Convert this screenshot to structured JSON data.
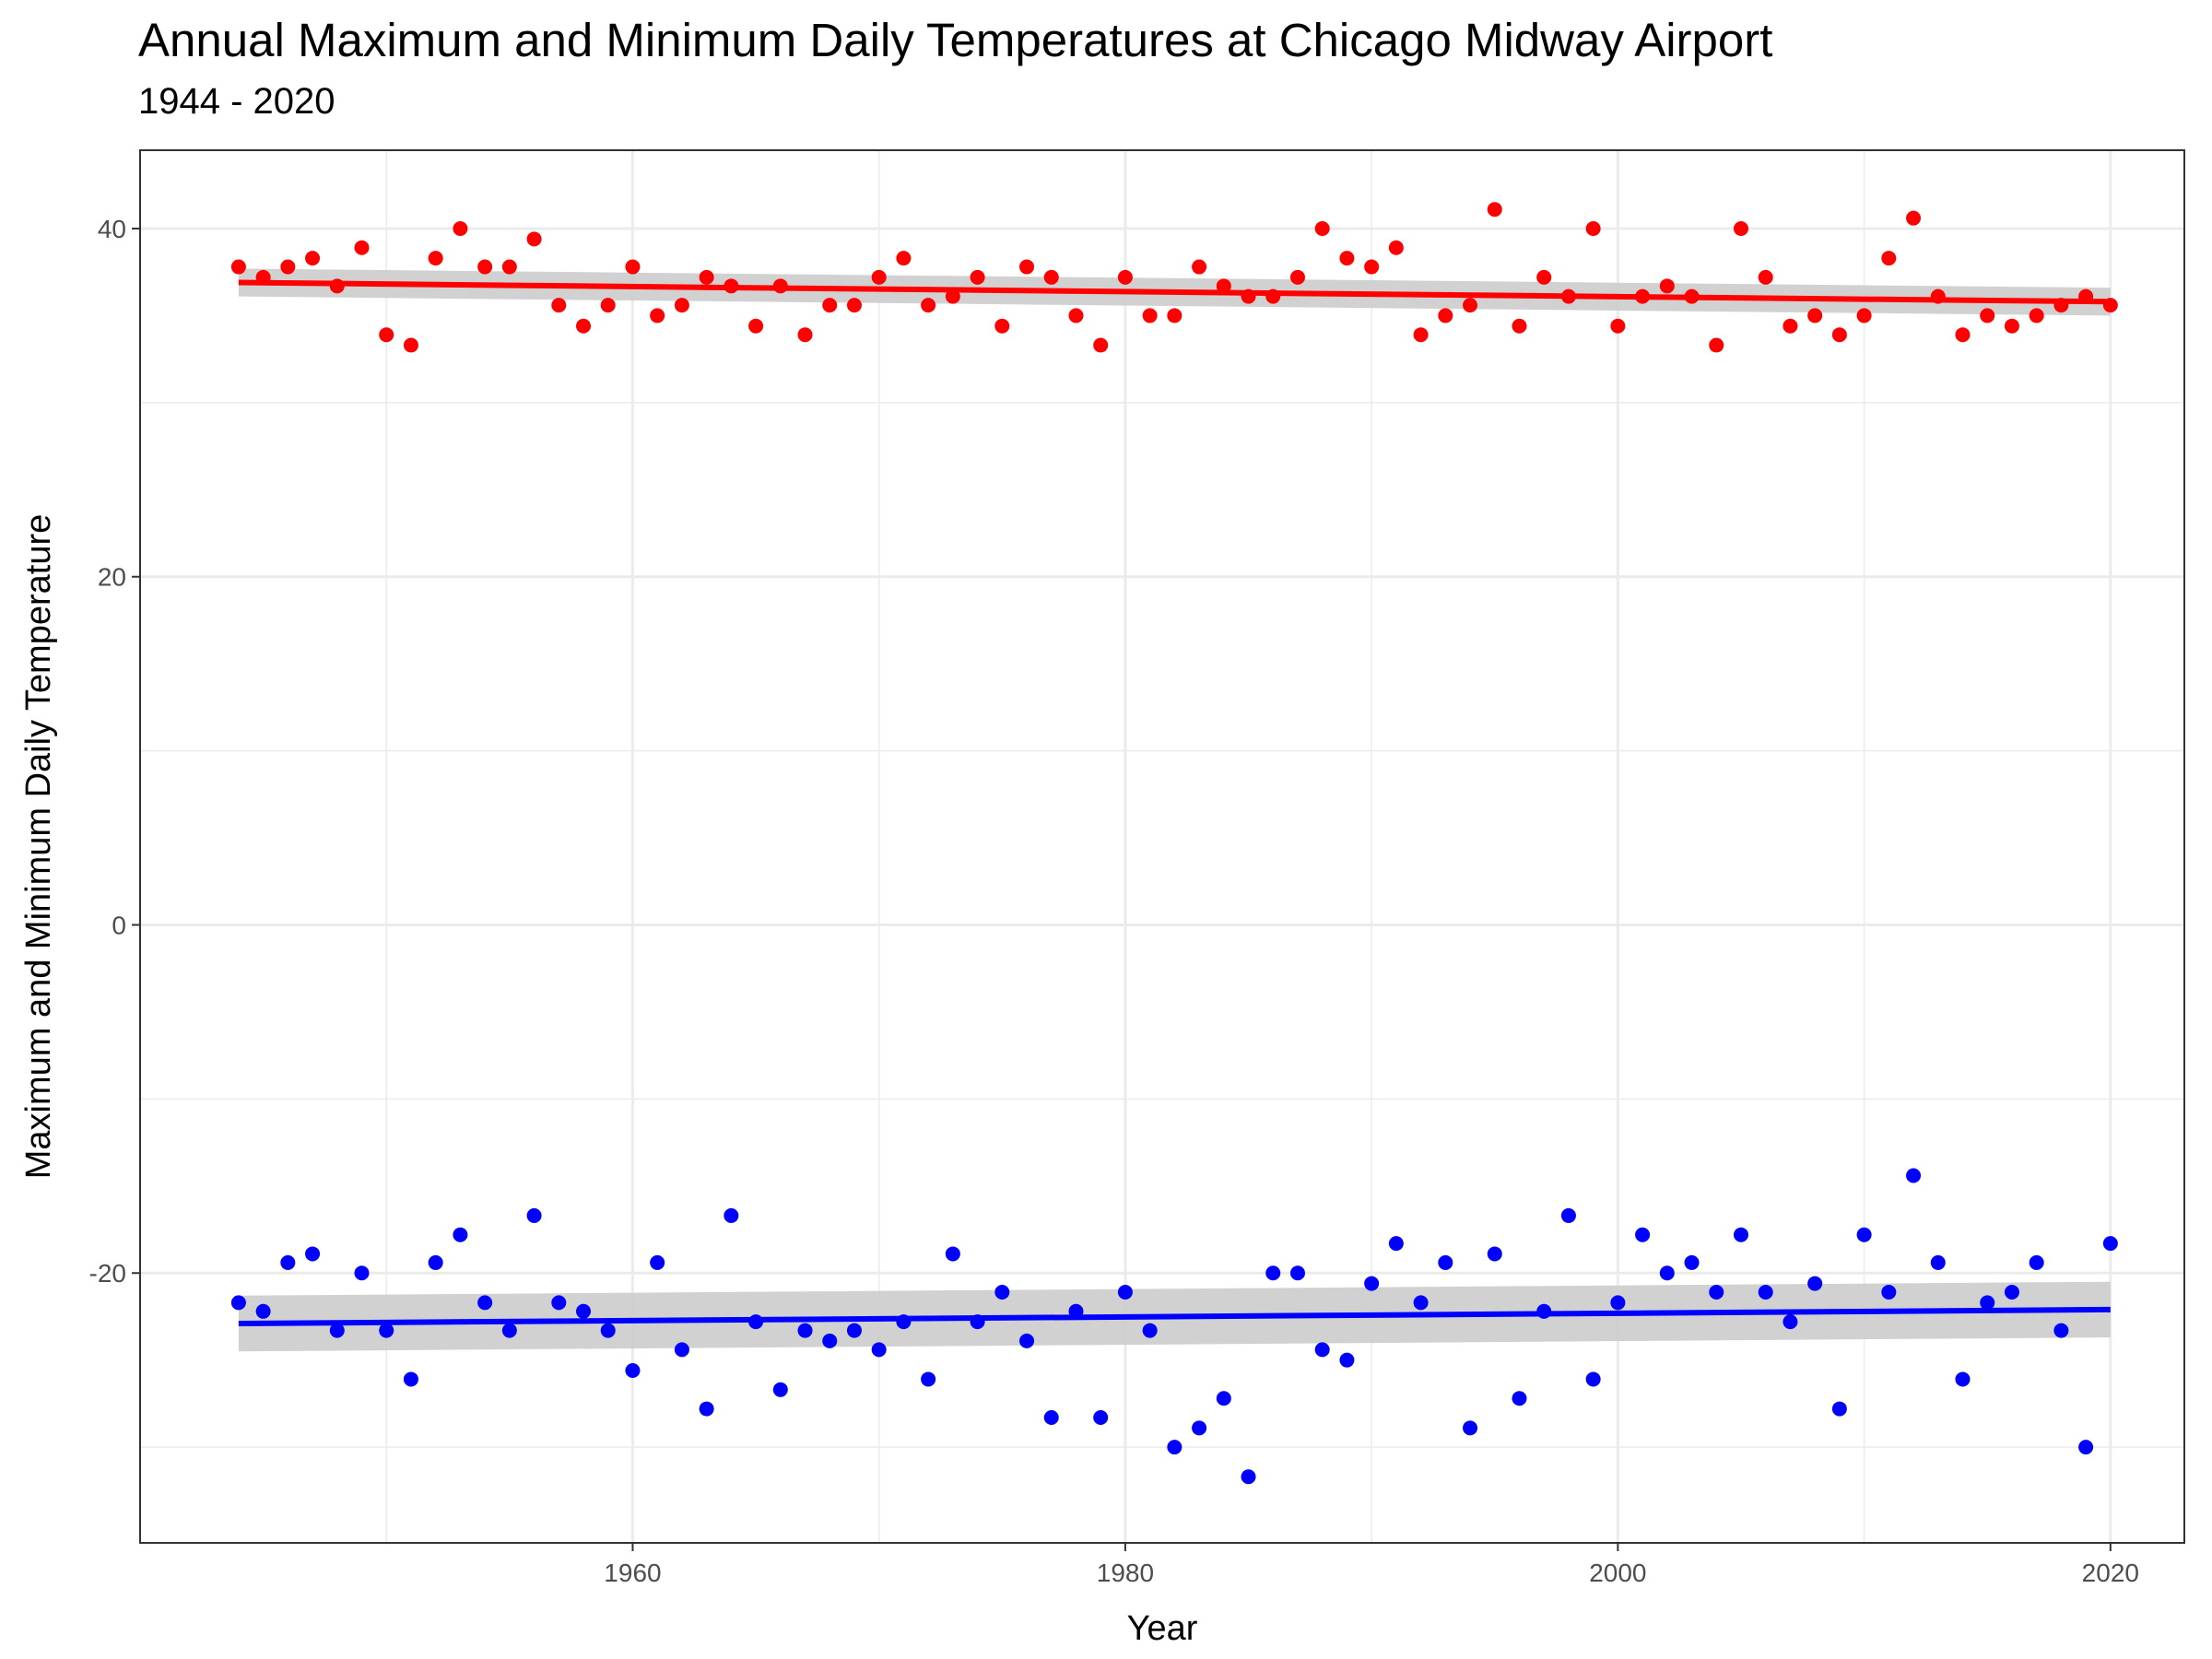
{
  "chart_data": {
    "type": "scatter",
    "title": "Annual Maximum and Minimum Daily Temperatures at Chicago Midway Airport",
    "subtitle": "1944 - 2020",
    "xlabel": "Year",
    "ylabel": "Maximum and Minimum Daily Temperature",
    "xlim": [
      1940,
      2023
    ],
    "ylim": [
      -35.5,
      44.5
    ],
    "x_ticks": [
      1960,
      1980,
      2000,
      2020
    ],
    "y_ticks": [
      -20,
      0,
      20,
      40
    ],
    "grid": true,
    "legend": "none",
    "colors": {
      "max": "#ff0000",
      "min": "#0000ff",
      "ribbon": "#cccccc",
      "grid": "#ebebeb"
    },
    "x": [
      1944,
      1945,
      1946,
      1947,
      1948,
      1949,
      1950,
      1951,
      1952,
      1953,
      1954,
      1955,
      1956,
      1957,
      1958,
      1959,
      1960,
      1961,
      1962,
      1963,
      1964,
      1965,
      1966,
      1967,
      1968,
      1969,
      1970,
      1971,
      1972,
      1973,
      1974,
      1975,
      1976,
      1977,
      1978,
      1979,
      1980,
      1981,
      1982,
      1983,
      1984,
      1985,
      1986,
      1987,
      1988,
      1989,
      1990,
      1991,
      1992,
      1993,
      1994,
      1995,
      1996,
      1997,
      1998,
      1999,
      2000,
      2001,
      2002,
      2003,
      2004,
      2005,
      2006,
      2007,
      2008,
      2009,
      2010,
      2011,
      2012,
      2013,
      2014,
      2015,
      2016,
      2017,
      2018,
      2019,
      2020
    ],
    "series": [
      {
        "color": "#ff0000",
        "values": [
          37.8,
          37.2,
          37.8,
          38.3,
          36.7,
          38.9,
          33.9,
          33.3,
          38.3,
          40.0,
          37.8,
          37.8,
          39.4,
          35.6,
          34.4,
          35.6,
          37.8,
          35.0,
          35.6,
          37.2,
          36.7,
          34.4,
          36.7,
          33.9,
          35.6,
          35.6,
          37.2,
          38.3,
          35.6,
          36.1,
          37.2,
          34.4,
          37.8,
          37.2,
          35.0,
          33.3,
          37.2,
          35.0,
          35.0,
          37.8,
          36.7,
          36.1,
          36.1,
          37.2,
          40.0,
          38.3,
          37.8,
          38.9,
          33.9,
          35.0,
          35.6,
          41.1,
          34.4,
          37.2,
          36.1,
          40.0,
          34.4,
          36.1,
          36.7,
          36.1,
          33.3,
          40.0,
          37.2,
          34.4,
          35.0,
          33.9,
          35.0,
          38.3,
          40.6,
          36.1,
          33.9,
          35.0,
          34.4,
          35.0,
          35.6,
          36.1,
          35.6
        ],
        "trend": [
          36.9,
          35.8
        ],
        "band": [
          0.8,
          0.8
        ]
      },
      {
        "color": "#0000ff",
        "values": [
          -21.7,
          -22.2,
          -19.4,
          -18.9,
          -23.3,
          -20.0,
          -23.3,
          -26.1,
          -19.4,
          -17.8,
          -21.7,
          -23.3,
          -16.7,
          -21.7,
          -22.2,
          -23.3,
          -25.6,
          -19.4,
          -24.4,
          -27.8,
          -16.7,
          -22.8,
          -26.7,
          -23.3,
          -23.9,
          -23.3,
          -24.4,
          -22.8,
          -26.1,
          -18.9,
          -22.8,
          -21.1,
          -23.9,
          -28.3,
          -22.2,
          -28.3,
          -21.1,
          -23.3,
          -30.0,
          -28.9,
          -27.2,
          -31.7,
          -20.0,
          -20.0,
          -24.4,
          -25.0,
          -20.6,
          -18.3,
          -21.7,
          -19.4,
          -28.9,
          -18.9,
          -27.2,
          -22.2,
          -16.7,
          -26.1,
          -21.7,
          -17.8,
          -20.0,
          -19.4,
          -21.1,
          -17.8,
          -21.1,
          -22.8,
          -20.6,
          -27.8,
          -17.8,
          -21.1,
          -14.4,
          -19.4,
          -26.1,
          -21.7,
          -21.1,
          -19.4,
          -23.3,
          -30.0,
          -18.3
        ],
        "trend": [
          -22.9,
          -22.1
        ],
        "band": [
          1.6,
          1.6
        ]
      }
    ]
  }
}
